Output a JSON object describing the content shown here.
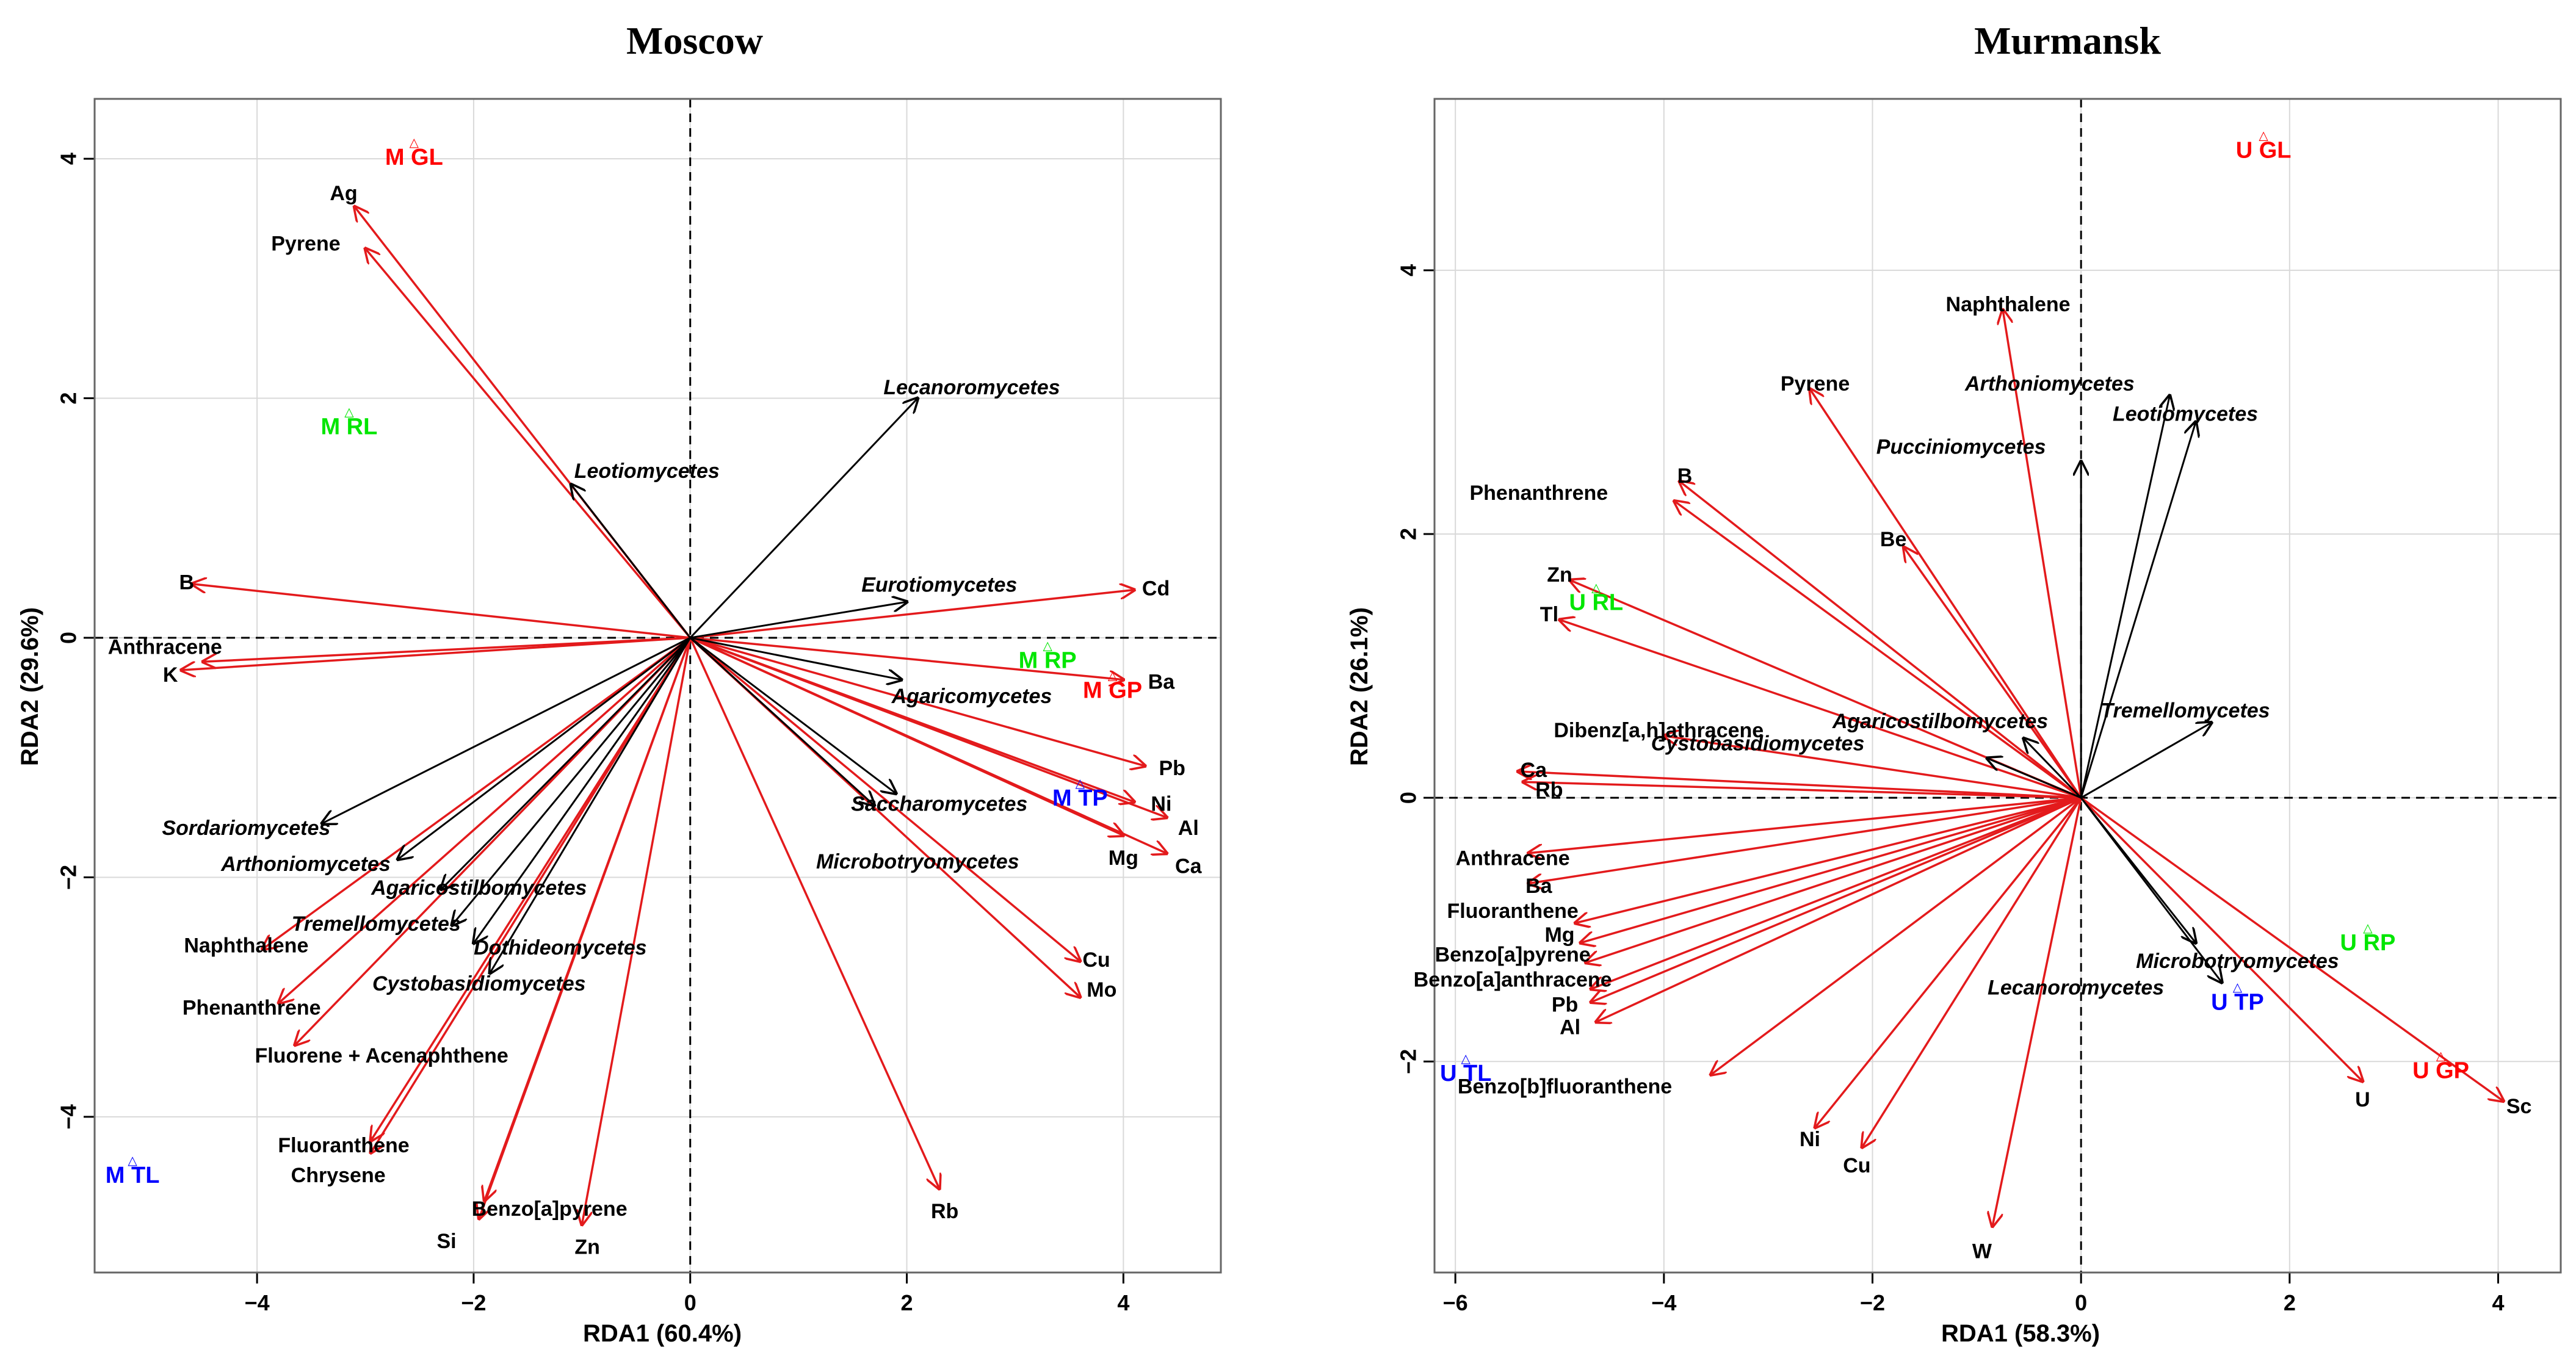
{
  "chart_data": [
    {
      "type": "scatter",
      "title": "Moscow",
      "xlabel": "RDA1 (60.4%)",
      "ylabel": "RDA2 (29.6%)",
      "xlim": [
        -5.5,
        4.9
      ],
      "ylim": [
        -5.3,
        4.5
      ],
      "xticks": [
        -4,
        -2,
        0,
        2,
        4
      ],
      "yticks": [
        -4,
        -2,
        0,
        2,
        4
      ],
      "grid": true,
      "colors": {
        "variables": "#e31a1c",
        "species": "#000000",
        "sites_grassland": "#ff0000",
        "sites_recreation": "#00e600",
        "sites_traffic": "#0000ff"
      },
      "variables": [
        {
          "name": "Ag",
          "x": -3.1,
          "y": 3.6,
          "lx": -3.2,
          "ly": 3.7
        },
        {
          "name": "Pyrene",
          "x": -3.0,
          "y": 3.25,
          "lx": -3.55,
          "ly": 3.28
        },
        {
          "name": "B",
          "x": -4.6,
          "y": 0.45,
          "lx": -4.65,
          "ly": 0.45
        },
        {
          "name": "Anthracene",
          "x": -4.5,
          "y": -0.2,
          "lx": -4.85,
          "ly": -0.09
        },
        {
          "name": "K",
          "x": -4.7,
          "y": -0.27,
          "lx": -4.8,
          "ly": -0.32
        },
        {
          "name": "Cd",
          "x": 4.1,
          "y": 0.4,
          "lx": 4.3,
          "ly": 0.4
        },
        {
          "name": "Ba",
          "x": 4.0,
          "y": -0.35,
          "lx": 4.35,
          "ly": -0.38
        },
        {
          "name": "Pb",
          "x": 4.2,
          "y": -1.07,
          "lx": 4.45,
          "ly": -1.1
        },
        {
          "name": "Ni",
          "x": 4.1,
          "y": -1.37,
          "lx": 4.35,
          "ly": -1.4
        },
        {
          "name": "Al",
          "x": 4.4,
          "y": -1.5,
          "lx": 4.6,
          "ly": -1.6
        },
        {
          "name": "Ca",
          "x": 4.4,
          "y": -1.8,
          "lx": 4.6,
          "ly": -1.92
        },
        {
          "name": "Mg",
          "x": 4.0,
          "y": -1.65,
          "lx": 4.0,
          "ly": -1.85
        },
        {
          "name": "Cu",
          "x": 3.6,
          "y": -2.7,
          "lx": 3.75,
          "ly": -2.7
        },
        {
          "name": "Mo",
          "x": 3.6,
          "y": -3.0,
          "lx": 3.8,
          "ly": -2.95
        },
        {
          "name": "Rb",
          "x": 2.3,
          "y": -4.6,
          "lx": 2.35,
          "ly": -4.8
        },
        {
          "name": "Zn",
          "x": -1.0,
          "y": -4.9,
          "lx": -0.95,
          "ly": -5.1
        },
        {
          "name": "Si",
          "x": -1.95,
          "y": -4.85,
          "lx": -2.25,
          "ly": -5.05
        },
        {
          "name": "Benzo[a]pyrene",
          "x": -1.9,
          "y": -4.7,
          "lx": -1.3,
          "ly": -4.78
        },
        {
          "name": "Chrysene",
          "x": -2.95,
          "y": -4.3,
          "lx": -3.25,
          "ly": -4.5
        },
        {
          "name": "Fluoranthene",
          "x": -2.95,
          "y": -4.2,
          "lx": -3.2,
          "ly": -4.25
        },
        {
          "name": "Fluorene + Acenaphthene",
          "x": -3.65,
          "y": -3.4,
          "lx": -2.85,
          "ly": -3.5
        },
        {
          "name": "Phenanthrene",
          "x": -3.8,
          "y": -3.05,
          "lx": -4.05,
          "ly": -3.1
        },
        {
          "name": "Naphthalene",
          "x": -3.95,
          "y": -2.6,
          "lx": -4.1,
          "ly": -2.58
        }
      ],
      "species": [
        {
          "name": "Lecanoromycetes",
          "x": 2.1,
          "y": 2.0,
          "lx": 2.6,
          "ly": 2.08
        },
        {
          "name": "Leotiomycetes",
          "x": -1.1,
          "y": 1.28,
          "lx": -0.4,
          "ly": 1.38
        },
        {
          "name": "Eurotiomycetes",
          "x": 2.0,
          "y": 0.3,
          "lx": 2.3,
          "ly": 0.43
        },
        {
          "name": "Agaricomycetes",
          "x": 1.95,
          "y": -0.35,
          "lx": 2.6,
          "ly": -0.5
        },
        {
          "name": "Saccharomycetes",
          "x": 1.9,
          "y": -1.3,
          "lx": 2.3,
          "ly": -1.4
        },
        {
          "name": "Microbotryomycetes",
          "x": 1.7,
          "y": -1.4,
          "lx": 2.1,
          "ly": -1.88
        },
        {
          "name": "Sordariomycetes",
          "x": -3.4,
          "y": -1.55,
          "lx": -4.1,
          "ly": -1.6
        },
        {
          "name": "Arthoniomycetes",
          "x": -2.7,
          "y": -1.85,
          "lx": -3.55,
          "ly": -1.9
        },
        {
          "name": "Agaricostilbomycetes",
          "x": -2.3,
          "y": -2.1,
          "lx": -1.95,
          "ly": -2.1
        },
        {
          "name": "Tremellomycetes",
          "x": -2.2,
          "y": -2.4,
          "lx": -2.9,
          "ly": -2.4
        },
        {
          "name": "Dothideomycetes",
          "x": -2.0,
          "y": -2.55,
          "lx": -1.2,
          "ly": -2.6
        },
        {
          "name": "Cystobasidiomycetes",
          "x": -1.85,
          "y": -2.8,
          "lx": -1.95,
          "ly": -2.9
        }
      ],
      "sites": [
        {
          "name": "M GL",
          "x": -2.55,
          "y": 4.0,
          "color": "#ff0000"
        },
        {
          "name": "M RL",
          "x": -3.15,
          "y": 1.75,
          "color": "#00e600"
        },
        {
          "name": "M RP",
          "x": 3.3,
          "y": -0.2,
          "color": "#00e600"
        },
        {
          "name": "M GP",
          "x": 3.9,
          "y": -0.45,
          "color": "#ff0000"
        },
        {
          "name": "M TP",
          "x": 3.6,
          "y": -1.35,
          "color": "#0000ff"
        },
        {
          "name": "M TL",
          "x": -5.15,
          "y": -4.5,
          "color": "#0000ff"
        }
      ]
    },
    {
      "type": "scatter",
      "title": "Murmansk",
      "xlabel": "RDA1 (58.3%)",
      "ylabel": "RDA2 (26.1%)",
      "xlim": [
        -6.2,
        4.6
      ],
      "ylim": [
        -3.6,
        5.3
      ],
      "xticks": [
        -6,
        -4,
        -2,
        0,
        2,
        4
      ],
      "yticks": [
        -2,
        0,
        2,
        4
      ],
      "grid": true,
      "colors": {
        "variables": "#e31a1c",
        "species": "#000000",
        "sites_grassland": "#ff0000",
        "sites_recreation": "#00e600",
        "sites_traffic": "#0000ff"
      },
      "variables": [
        {
          "name": "Naphthalene",
          "x": -0.75,
          "y": 3.7,
          "lx": -0.7,
          "ly": 3.73
        },
        {
          "name": "Pyrene",
          "x": -2.6,
          "y": 3.1,
          "lx": -2.55,
          "ly": 3.13
        },
        {
          "name": "B",
          "x": -3.85,
          "y": 2.4,
          "lx": -3.8,
          "ly": 2.43
        },
        {
          "name": "Phenanthrene",
          "x": -3.9,
          "y": 2.25,
          "lx": -5.2,
          "ly": 2.3
        },
        {
          "name": "Be",
          "x": -1.7,
          "y": 1.9,
          "lx": -1.8,
          "ly": 1.95
        },
        {
          "name": "Zn",
          "x": -4.9,
          "y": 1.65,
          "lx": -5.0,
          "ly": 1.68
        },
        {
          "name": "Tl",
          "x": -5.0,
          "y": 1.35,
          "lx": -5.1,
          "ly": 1.38
        },
        {
          "name": "Dibenz[a,h]athracene",
          "x": -4.0,
          "y": 0.47,
          "lx": -4.05,
          "ly": 0.5
        },
        {
          "name": "Ca",
          "x": -5.4,
          "y": 0.2,
          "lx": -5.25,
          "ly": 0.2
        },
        {
          "name": "Rb",
          "x": -5.35,
          "y": 0.12,
          "lx": -5.1,
          "ly": 0.05
        },
        {
          "name": "Anthracene",
          "x": -5.3,
          "y": -0.42,
          "lx": -5.45,
          "ly": -0.47
        },
        {
          "name": "Ba",
          "x": -5.3,
          "y": -0.65,
          "lx": -5.2,
          "ly": -0.68
        },
        {
          "name": "Fluoranthene",
          "x": -4.85,
          "y": -0.95,
          "lx": -5.45,
          "ly": -0.87
        },
        {
          "name": "Mg",
          "x": -4.8,
          "y": -1.1,
          "lx": -5.0,
          "ly": -1.05
        },
        {
          "name": "Benzo[a]pyrene",
          "x": -4.75,
          "y": -1.25,
          "lx": -5.45,
          "ly": -1.2
        },
        {
          "name": "Benzo[a]anthracene",
          "x": -4.7,
          "y": -1.45,
          "lx": -5.45,
          "ly": -1.39
        },
        {
          "name": "Pb",
          "x": -4.7,
          "y": -1.55,
          "lx": -4.95,
          "ly": -1.58
        },
        {
          "name": "Al",
          "x": -4.65,
          "y": -1.7,
          "lx": -4.9,
          "ly": -1.75
        },
        {
          "name": "Benzo[b]fluoranthene",
          "x": -3.55,
          "y": -2.1,
          "lx": -4.95,
          "ly": -2.2
        },
        {
          "name": "Ni",
          "x": -2.55,
          "y": -2.5,
          "lx": -2.6,
          "ly": -2.6
        },
        {
          "name": "Cu",
          "x": -2.1,
          "y": -2.65,
          "lx": -2.15,
          "ly": -2.8
        },
        {
          "name": "W",
          "x": -0.85,
          "y": -3.25,
          "lx": -0.95,
          "ly": -3.45
        },
        {
          "name": "U",
          "x": 2.7,
          "y": -2.15,
          "lx": 2.7,
          "ly": -2.3
        },
        {
          "name": "Sc",
          "x": 4.05,
          "y": -2.3,
          "lx": 4.2,
          "ly": -2.35
        }
      ],
      "species": [
        {
          "name": "Arthoniomycetes",
          "x": 0.85,
          "y": 3.05,
          "lx": -0.3,
          "ly": 3.13
        },
        {
          "name": "Leotiomycetes",
          "x": 1.1,
          "y": 2.85,
          "lx": 1.0,
          "ly": 2.9
        },
        {
          "name": "Pucciniomycetes",
          "x": 0.0,
          "y": 2.55,
          "lx": -1.15,
          "ly": 2.65
        },
        {
          "name": "Tremellomycetes",
          "x": 1.25,
          "y": 0.57,
          "lx": 1.0,
          "ly": 0.65
        },
        {
          "name": "Agaricostilbomycetes",
          "x": -0.55,
          "y": 0.45,
          "lx": -1.35,
          "ly": 0.57
        },
        {
          "name": "Cystobasidiomycetes",
          "x": -0.9,
          "y": 0.3,
          "lx": -3.1,
          "ly": 0.4
        },
        {
          "name": "Microbotryomycetes",
          "x": 1.1,
          "y": -1.1,
          "lx": 1.5,
          "ly": -1.25
        },
        {
          "name": "Lecanoromycetes",
          "x": 1.35,
          "y": -1.4,
          "lx": -0.05,
          "ly": -1.45
        }
      ],
      "sites": [
        {
          "name": "U GL",
          "x": 1.75,
          "y": 4.9,
          "color": "#ff0000"
        },
        {
          "name": "U RL",
          "x": -4.65,
          "y": 1.47,
          "color": "#00e600"
        },
        {
          "name": "U RP",
          "x": 2.75,
          "y": -1.11,
          "color": "#00e600"
        },
        {
          "name": "U TP",
          "x": 1.5,
          "y": -1.56,
          "color": "#0000ff"
        },
        {
          "name": "U GP",
          "x": 3.45,
          "y": -2.08,
          "color": "#ff0000"
        },
        {
          "name": "U TL",
          "x": -5.9,
          "y": -2.1,
          "color": "#0000ff"
        }
      ]
    }
  ]
}
